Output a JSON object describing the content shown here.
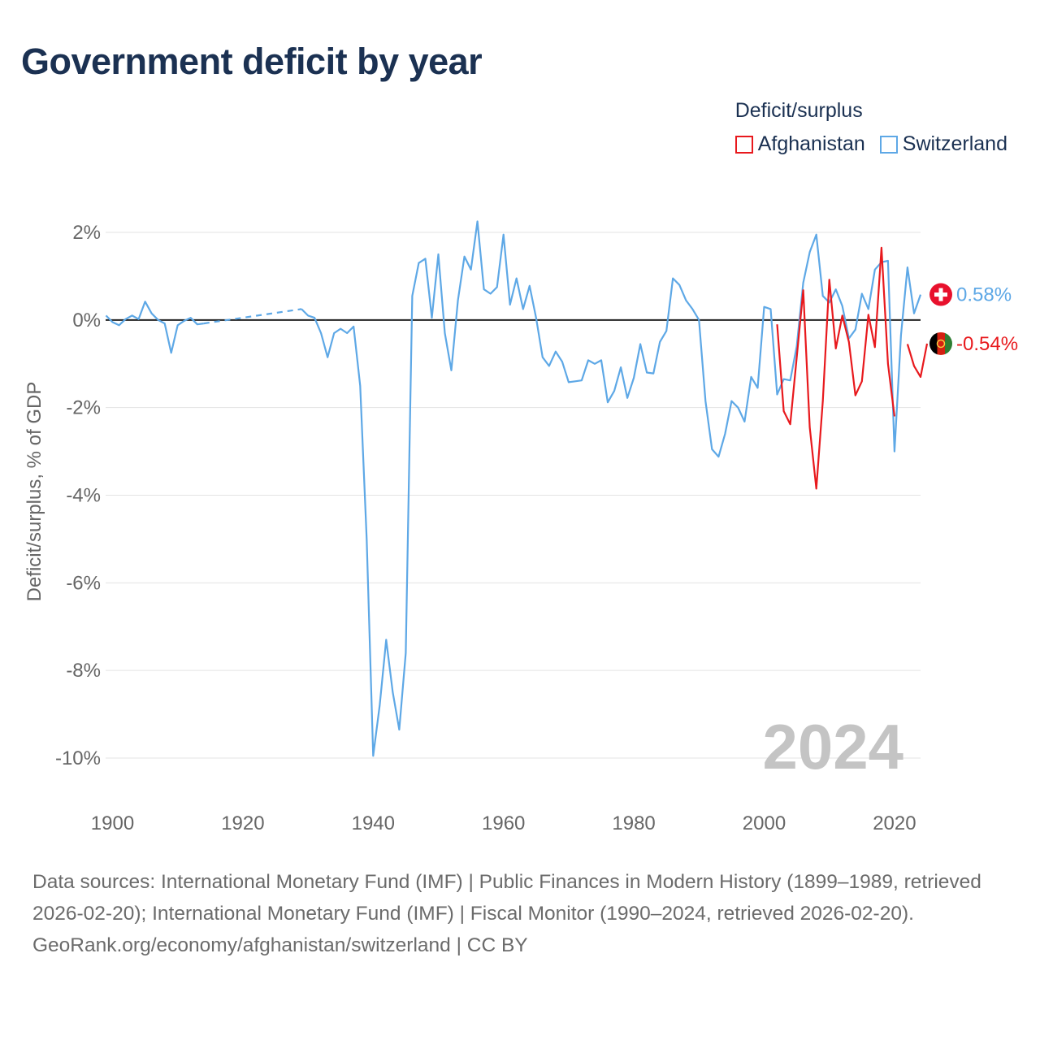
{
  "title": "Government deficit by year",
  "legend": {
    "title": "Deficit/surplus",
    "items": [
      {
        "label": "Afghanistan",
        "color": "#e8191d"
      },
      {
        "label": "Switzerland",
        "color": "#5ea8e6"
      }
    ]
  },
  "year_watermark": "2024",
  "footer": {
    "sources": "Data sources: International Monetary Fund (IMF) | Public Finances in Modern History (1899–1989, retrieved 2026-02-20); International Monetary Fund (IMF) | Fiscal Monitor (1990–2024, retrieved 2026-02-20).",
    "credit": "GeoRank.org/economy/afghanistan/switzerland | CC BY"
  },
  "chart_data": {
    "type": "line",
    "title": "Government deficit by year",
    "xlabel": "",
    "ylabel": "Deficit/surplus, % of GDP",
    "xlim": [
      1899,
      2024
    ],
    "ylim": [
      -10,
      2
    ],
    "x_ticks": [
      1900,
      1920,
      1940,
      1960,
      1980,
      2000,
      2020
    ],
    "x_tick_labels": [
      "1900",
      "1920",
      "1940",
      "1960",
      "1980",
      "2000",
      "2020"
    ],
    "y_ticks": [
      2,
      0,
      -2,
      -4,
      -6,
      -8,
      -10
    ],
    "y_tick_labels": [
      "2%",
      "0%",
      "-2%",
      "-4%",
      "-6%",
      "-8%",
      "-10%"
    ],
    "zero_line": true,
    "grid": true,
    "series": [
      {
        "name": "Switzerland",
        "color": "#5ea8e6",
        "end_label": "0.58%",
        "gap_style": "dashed",
        "points": [
          [
            1899,
            0.1
          ],
          [
            1900,
            -0.05
          ],
          [
            1901,
            -0.12
          ],
          [
            1902,
            0.02
          ],
          [
            1903,
            0.1
          ],
          [
            1904,
            0.02
          ],
          [
            1905,
            0.42
          ],
          [
            1906,
            0.15
          ],
          [
            1907,
            0.0
          ],
          [
            1908,
            -0.08
          ],
          [
            1909,
            -0.75
          ],
          [
            1910,
            -0.12
          ],
          [
            1911,
            -0.02
          ],
          [
            1912,
            0.05
          ],
          [
            1913,
            -0.1
          ],
          [
            1914,
            -0.08
          ],
          [
            1915,
            null
          ],
          [
            1916,
            null
          ],
          [
            1917,
            null
          ],
          [
            1918,
            null
          ],
          [
            1919,
            null
          ],
          [
            1920,
            null
          ],
          [
            1921,
            null
          ],
          [
            1922,
            null
          ],
          [
            1923,
            null
          ],
          [
            1924,
            null
          ],
          [
            1925,
            null
          ],
          [
            1926,
            null
          ],
          [
            1927,
            null
          ],
          [
            1928,
            null
          ],
          [
            1929,
            0.25
          ],
          [
            1930,
            0.1
          ],
          [
            1931,
            0.05
          ],
          [
            1932,
            -0.3
          ],
          [
            1933,
            -0.85
          ],
          [
            1934,
            -0.3
          ],
          [
            1935,
            -0.2
          ],
          [
            1936,
            -0.3
          ],
          [
            1937,
            -0.15
          ],
          [
            1938,
            -1.5
          ],
          [
            1939,
            -5.0
          ],
          [
            1940,
            -9.95
          ],
          [
            1941,
            -8.8
          ],
          [
            1942,
            -7.3
          ],
          [
            1943,
            -8.5
          ],
          [
            1944,
            -9.35
          ],
          [
            1945,
            -7.6
          ],
          [
            1946,
            0.55
          ],
          [
            1947,
            1.3
          ],
          [
            1948,
            1.4
          ],
          [
            1949,
            0.05
          ],
          [
            1950,
            1.5
          ],
          [
            1951,
            -0.3
          ],
          [
            1952,
            -1.15
          ],
          [
            1953,
            0.45
          ],
          [
            1954,
            1.45
          ],
          [
            1955,
            1.15
          ],
          [
            1956,
            2.25
          ],
          [
            1957,
            0.7
          ],
          [
            1958,
            0.6
          ],
          [
            1959,
            0.75
          ],
          [
            1960,
            1.95
          ],
          [
            1961,
            0.35
          ],
          [
            1962,
            0.95
          ],
          [
            1963,
            0.25
          ],
          [
            1964,
            0.78
          ],
          [
            1965,
            0.05
          ],
          [
            1966,
            -0.85
          ],
          [
            1967,
            -1.05
          ],
          [
            1968,
            -0.72
          ],
          [
            1969,
            -0.95
          ],
          [
            1970,
            -1.42
          ],
          [
            1971,
            -1.4
          ],
          [
            1972,
            -1.38
          ],
          [
            1973,
            -0.92
          ],
          [
            1974,
            -1.0
          ],
          [
            1975,
            -0.92
          ],
          [
            1976,
            -1.88
          ],
          [
            1977,
            -1.62
          ],
          [
            1978,
            -1.08
          ],
          [
            1979,
            -1.78
          ],
          [
            1980,
            -1.32
          ],
          [
            1981,
            -0.55
          ],
          [
            1982,
            -1.2
          ],
          [
            1983,
            -1.22
          ],
          [
            1984,
            -0.5
          ],
          [
            1985,
            -0.25
          ],
          [
            1986,
            0.95
          ],
          [
            1987,
            0.8
          ],
          [
            1988,
            0.45
          ],
          [
            1989,
            0.25
          ],
          [
            1990,
            0.0
          ],
          [
            1991,
            -1.85
          ],
          [
            1992,
            -2.95
          ],
          [
            1993,
            -3.12
          ],
          [
            1994,
            -2.6
          ],
          [
            1995,
            -1.85
          ],
          [
            1996,
            -2.0
          ],
          [
            1997,
            -2.32
          ],
          [
            1998,
            -1.3
          ],
          [
            1999,
            -1.55
          ],
          [
            2000,
            0.3
          ],
          [
            2001,
            0.25
          ],
          [
            2002,
            -1.7
          ],
          [
            2003,
            -1.35
          ],
          [
            2004,
            -1.38
          ],
          [
            2005,
            -0.6
          ],
          [
            2006,
            0.85
          ],
          [
            2007,
            1.55
          ],
          [
            2008,
            1.95
          ],
          [
            2009,
            0.55
          ],
          [
            2010,
            0.4
          ],
          [
            2011,
            0.7
          ],
          [
            2012,
            0.32
          ],
          [
            2013,
            -0.42
          ],
          [
            2014,
            -0.22
          ],
          [
            2015,
            0.6
          ],
          [
            2016,
            0.25
          ],
          [
            2017,
            1.15
          ],
          [
            2018,
            1.32
          ],
          [
            2019,
            1.35
          ],
          [
            2020,
            -3.0
          ],
          [
            2021,
            -0.35
          ],
          [
            2022,
            1.2
          ],
          [
            2023,
            0.15
          ],
          [
            2024,
            0.58
          ]
        ]
      },
      {
        "name": "Afghanistan",
        "color": "#e8191d",
        "end_label": "-0.54%",
        "gap_style": "none",
        "points": [
          [
            2002,
            -0.1
          ],
          [
            2003,
            -2.08
          ],
          [
            2004,
            -2.38
          ],
          [
            2005,
            -0.85
          ],
          [
            2006,
            0.68
          ],
          [
            2007,
            -2.45
          ],
          [
            2008,
            -3.85
          ],
          [
            2009,
            -1.85
          ],
          [
            2010,
            0.92
          ],
          [
            2011,
            -0.65
          ],
          [
            2012,
            0.1
          ],
          [
            2013,
            -0.5
          ],
          [
            2014,
            -1.72
          ],
          [
            2015,
            -1.4
          ],
          [
            2016,
            0.12
          ],
          [
            2017,
            -0.62
          ],
          [
            2018,
            1.65
          ],
          [
            2019,
            -1.0
          ],
          [
            2020,
            -2.2
          ],
          [
            2021,
            null
          ],
          [
            2022,
            -0.55
          ],
          [
            2023,
            -1.05
          ],
          [
            2024,
            -1.3
          ],
          [
            2025,
            -0.54
          ]
        ]
      }
    ]
  }
}
